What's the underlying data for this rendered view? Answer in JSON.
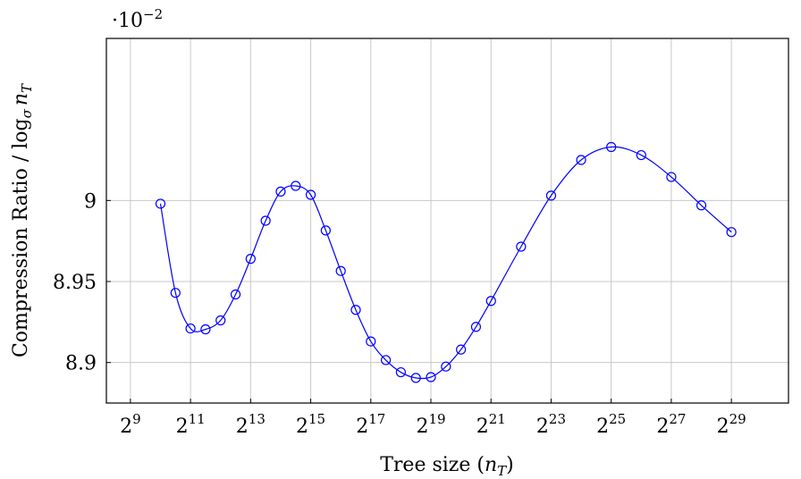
{
  "chart_data": {
    "type": "line",
    "xlabel_prefix": "Tree size (",
    "xlabel_var": "n",
    "xlabel_sub": "T",
    "xlabel_suffix": ")",
    "ylabel_text": "Compression Ratio / log",
    "ylabel_base": "σ",
    "ylabel_var": "n",
    "ylabel_sub": "T",
    "multiplier_base": "·10",
    "multiplier_exp": "−2",
    "x_scale": "log2",
    "xlim_log2": [
      8.2,
      30.9
    ],
    "ylim": [
      8.875,
      9.1
    ],
    "grid": true,
    "x_ticks": [
      {
        "base": "2",
        "exp": "9",
        "log2": 9
      },
      {
        "base": "2",
        "exp": "11",
        "log2": 11
      },
      {
        "base": "2",
        "exp": "13",
        "log2": 13
      },
      {
        "base": "2",
        "exp": "15",
        "log2": 15
      },
      {
        "base": "2",
        "exp": "17",
        "log2": 17
      },
      {
        "base": "2",
        "exp": "19",
        "log2": 19
      },
      {
        "base": "2",
        "exp": "21",
        "log2": 21
      },
      {
        "base": "2",
        "exp": "23",
        "log2": 23
      },
      {
        "base": "2",
        "exp": "25",
        "log2": 25
      },
      {
        "base": "2",
        "exp": "27",
        "log2": 27
      },
      {
        "base": "2",
        "exp": "29",
        "log2": 29
      }
    ],
    "y_ticks": [
      {
        "label": "8.9",
        "value": 8.9
      },
      {
        "label": "8.95",
        "value": 8.95
      },
      {
        "label": "9",
        "value": 9.0
      }
    ],
    "series": [
      {
        "color": "#0000ff",
        "marker": "circle-open",
        "x_log2": [
          10,
          10.5,
          11,
          11.5,
          12,
          12.5,
          13,
          13.5,
          14,
          14.5,
          15,
          15.5,
          16,
          16.5,
          17,
          17.5,
          18,
          18.5,
          19,
          19.5,
          20,
          20.5,
          21,
          22,
          23,
          24,
          25,
          26,
          27,
          28,
          29
        ],
        "values": [
          8.998,
          8.943,
          8.921,
          8.9205,
          8.926,
          8.942,
          8.964,
          8.9875,
          9.0055,
          9.009,
          9.0035,
          8.9815,
          8.9565,
          8.9325,
          8.913,
          8.9015,
          8.894,
          8.8905,
          8.891,
          8.8975,
          8.908,
          8.922,
          8.938,
          8.9715,
          9.003,
          9.025,
          9.033,
          9.028,
          9.0145,
          8.997,
          8.9805
        ]
      }
    ]
  }
}
